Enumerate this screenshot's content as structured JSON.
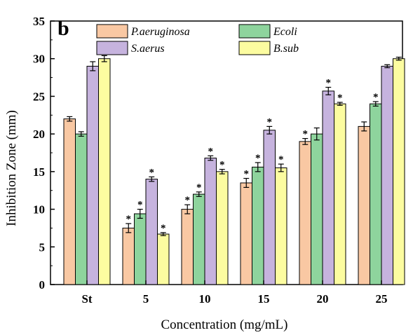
{
  "panel_label": "b",
  "chart_data": {
    "type": "bar",
    "xlabel": "Concentration (mg/mL)",
    "ylabel": "Inhibition Zone (mm)",
    "categories": [
      "St",
      "5",
      "10",
      "15",
      "20",
      "25"
    ],
    "ylim": [
      0,
      35
    ],
    "yticks": [
      "0",
      "5",
      "10",
      "15",
      "20",
      "25",
      "30",
      "35"
    ],
    "grid": false,
    "legend_position": "top",
    "significance_marker": "*",
    "series": [
      {
        "name": "P.aeruginosa",
        "color": "#f9c8a3",
        "values": [
          22,
          7.5,
          10,
          13.5,
          19,
          21
        ],
        "errors": [
          0.3,
          0.6,
          0.6,
          0.6,
          0.4,
          0.6
        ],
        "significant": [
          false,
          true,
          true,
          true,
          true,
          false
        ]
      },
      {
        "name": "Ecoli",
        "color": "#8ed49d",
        "values": [
          20,
          9.4,
          12,
          15.6,
          20,
          24
        ],
        "errors": [
          0.3,
          0.6,
          0.3,
          0.6,
          0.8,
          0.3
        ],
        "significant": [
          false,
          true,
          true,
          true,
          false,
          true
        ]
      },
      {
        "name": "S.aerus",
        "color": "#c6b3de",
        "values": [
          29,
          14,
          16.8,
          20.5,
          25.7,
          29
        ],
        "errors": [
          0.6,
          0.3,
          0.3,
          0.5,
          0.5,
          0.2
        ],
        "significant": [
          false,
          true,
          true,
          true,
          true,
          false
        ]
      },
      {
        "name": "B.sub",
        "color": "#fcfca0",
        "values": [
          30,
          6.7,
          15,
          15.5,
          24,
          30
        ],
        "errors": [
          0.4,
          0.2,
          0.3,
          0.5,
          0.2,
          0.2
        ],
        "significant": [
          false,
          true,
          true,
          true,
          true,
          false
        ]
      }
    ]
  }
}
